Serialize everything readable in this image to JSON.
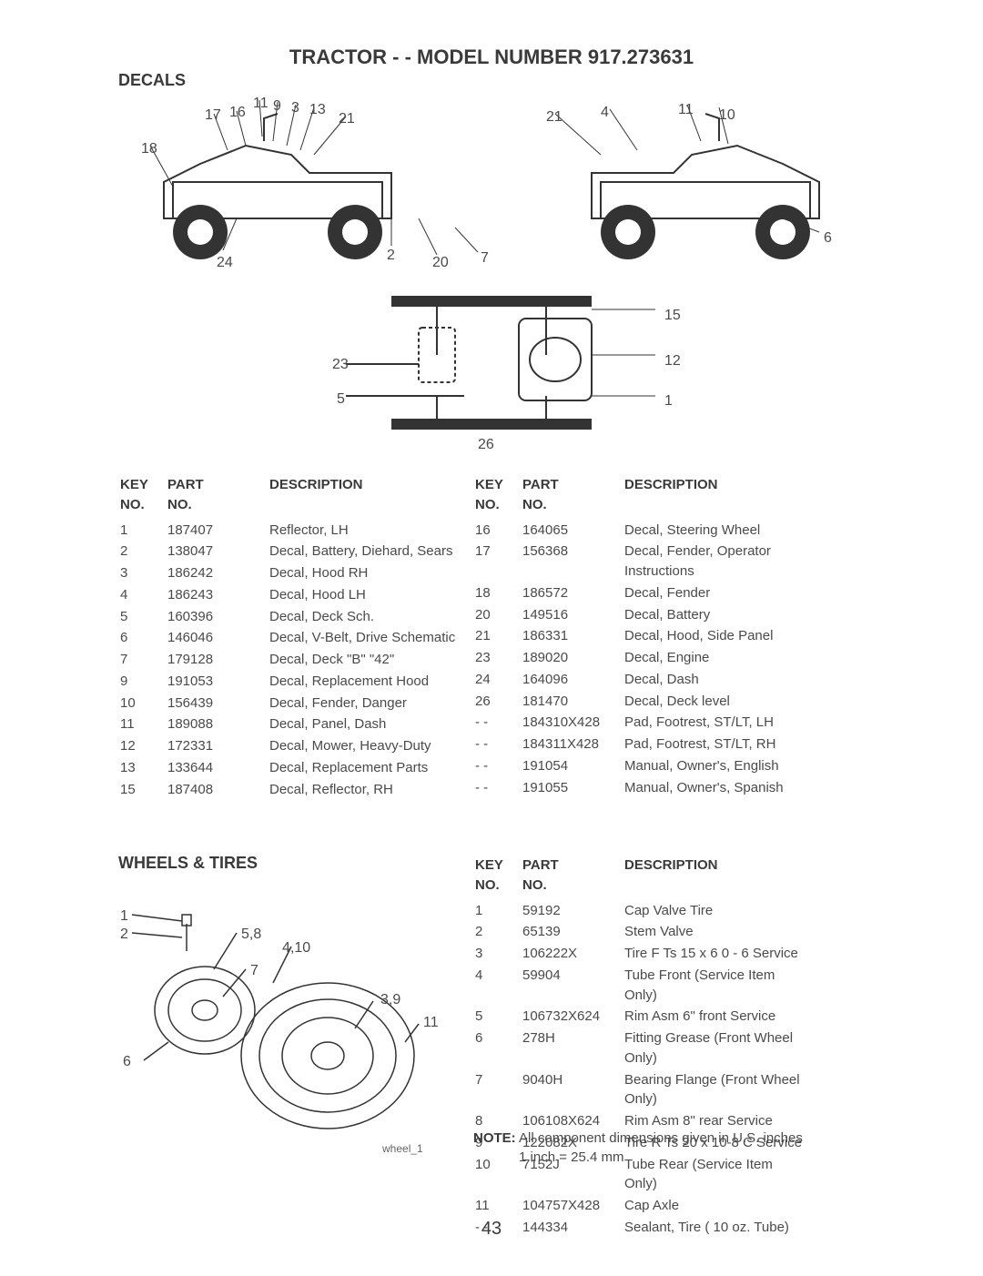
{
  "title": "TRACTOR - - MODEL NUMBER 917.273631",
  "page_number": "43",
  "sections": {
    "decals": {
      "label": "DECALS",
      "callouts_left": [
        "18",
        "17",
        "16",
        "11",
        "9",
        "3",
        "13",
        "21",
        "24",
        "2",
        "20",
        "7",
        "23",
        "5",
        "26"
      ],
      "callouts_right": [
        "21",
        "4",
        "11",
        "10",
        "6",
        "15",
        "12",
        "1"
      ],
      "table_headers": {
        "key": "KEY NO.",
        "part": "PART NO.",
        "desc": "DESCRIPTION"
      },
      "rows_left": [
        {
          "key": "1",
          "part": "187407",
          "desc": "Reflector, LH"
        },
        {
          "key": "2",
          "part": "138047",
          "desc": "Decal, Battery, Diehard, Sears"
        },
        {
          "key": "3",
          "part": "186242",
          "desc": "Decal, Hood RH"
        },
        {
          "key": "4",
          "part": "186243",
          "desc": "Decal, Hood LH"
        },
        {
          "key": "5",
          "part": "160396",
          "desc": "Decal, Deck Sch."
        },
        {
          "key": "6",
          "part": "146046",
          "desc": "Decal, V-Belt, Drive Schematic"
        },
        {
          "key": "7",
          "part": "179128",
          "desc": "Decal, Deck \"B\" \"42\""
        },
        {
          "key": "9",
          "part": "191053",
          "desc": "Decal, Replacement Hood"
        },
        {
          "key": "10",
          "part": "156439",
          "desc": "Decal, Fender, Danger"
        },
        {
          "key": "11",
          "part": "189088",
          "desc": "Decal, Panel, Dash"
        },
        {
          "key": "12",
          "part": "172331",
          "desc": "Decal, Mower, Heavy-Duty"
        },
        {
          "key": "13",
          "part": "133644",
          "desc": "Decal, Replacement Parts"
        },
        {
          "key": "15",
          "part": "187408",
          "desc": "Decal, Reflector, RH"
        }
      ],
      "rows_right": [
        {
          "key": "16",
          "part": "164065",
          "desc": "Decal, Steering Wheel"
        },
        {
          "key": "17",
          "part": "156368",
          "desc": "Decal, Fender, Operator Instructions"
        },
        {
          "key": "18",
          "part": "186572",
          "desc": "Decal, Fender"
        },
        {
          "key": "20",
          "part": "149516",
          "desc": "Decal, Battery"
        },
        {
          "key": "21",
          "part": "186331",
          "desc": "Decal, Hood, Side Panel"
        },
        {
          "key": "23",
          "part": "189020",
          "desc": "Decal, Engine"
        },
        {
          "key": "24",
          "part": "164096",
          "desc": "Decal, Dash"
        },
        {
          "key": "26",
          "part": "181470",
          "desc": "Decal, Deck level"
        },
        {
          "key": "- -",
          "part": "184310X428",
          "desc": "Pad, Footrest, ST/LT, LH"
        },
        {
          "key": "- -",
          "part": "184311X428",
          "desc": "Pad, Footrest, ST/LT, RH"
        },
        {
          "key": "- -",
          "part": "191054",
          "desc": "Manual, Owner's, English"
        },
        {
          "key": "- -",
          "part": "191055",
          "desc": "Manual, Owner's, Spanish"
        }
      ]
    },
    "wheels": {
      "label": "WHEELS & TIRES",
      "diagram_label": "wheel_1",
      "callouts": [
        "1",
        "2",
        "5,8",
        "4,10",
        "7",
        "3,9",
        "6",
        "11"
      ],
      "table_headers": {
        "key": "KEY NO.",
        "part": "PART NO.",
        "desc": "DESCRIPTION"
      },
      "rows": [
        {
          "key": "1",
          "part": "59192",
          "desc": "Cap Valve Tire"
        },
        {
          "key": "2",
          "part": "65139",
          "desc": "Stem Valve"
        },
        {
          "key": "3",
          "part": "106222X",
          "desc": "Tire F Ts 15 x 6 0 - 6 Service"
        },
        {
          "key": "4",
          "part": "59904",
          "desc": "Tube Front (Service Item Only)"
        },
        {
          "key": "5",
          "part": "106732X624",
          "desc": "Rim Asm 6\" front Service"
        },
        {
          "key": "6",
          "part": "278H",
          "desc": "Fitting Grease (Front Wheel Only)"
        },
        {
          "key": "7",
          "part": "9040H",
          "desc": "Bearing Flange (Front Wheel Only)"
        },
        {
          "key": "8",
          "part": "106108X624",
          "desc": "Rim Asm 8\" rear Service"
        },
        {
          "key": "9",
          "part": "122082X",
          "desc": "Tire R Ts 20 x 10-8 C Service"
        },
        {
          "key": "10",
          "part": "7152J",
          "desc": "Tube Rear (Service Item Only)"
        },
        {
          "key": "11",
          "part": "104757X428",
          "desc": "Cap Axle"
        },
        {
          "key": "- -",
          "part": "144334",
          "desc": "Sealant, Tire ( 10 oz. Tube)"
        }
      ],
      "note_label": "NOTE:",
      "note_text": "All component dimensions given in U.S. inches",
      "note_sub": "1 inch = 25.4 mm"
    }
  },
  "style": {
    "background": "#ffffff",
    "text_color": "#4a4a4a",
    "heading_color": "#3a3a3a",
    "font": "Arial",
    "title_fontsize": 22,
    "body_fontsize": 15
  }
}
